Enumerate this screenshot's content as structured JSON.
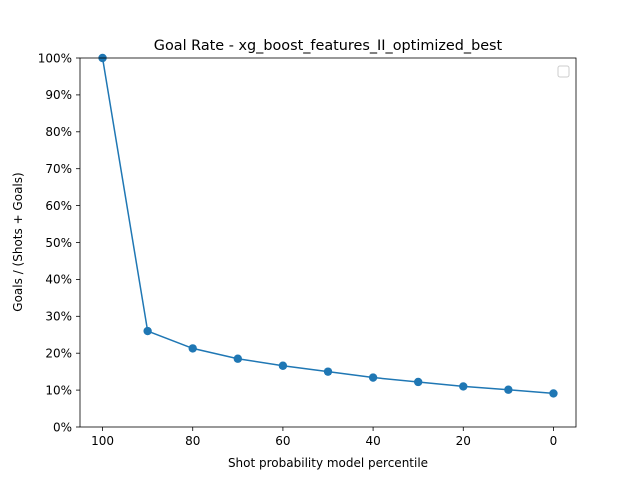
{
  "chart_data": {
    "type": "line",
    "title": "Goal Rate - xg_boost_features_II_optimized_best",
    "xlabel": "Shot probability model percentile",
    "ylabel": "Goals / (Shots + Goals)",
    "x_inverted": true,
    "xlim": [
      105,
      -5
    ],
    "ylim": [
      0,
      100
    ],
    "x_ticks": [
      100,
      80,
      60,
      40,
      20,
      0
    ],
    "y_ticks": [
      0,
      10,
      20,
      30,
      40,
      50,
      60,
      70,
      80,
      90,
      100
    ],
    "y_tick_suffix": "%",
    "grid": false,
    "legend": {
      "placement": "upper right",
      "entries": []
    },
    "series": [
      {
        "color": "#1f77b4",
        "marker": "circle",
        "x": [
          100,
          90,
          80,
          70,
          60,
          50,
          40,
          30,
          20,
          10,
          0
        ],
        "y": [
          100,
          26,
          21.3,
          18.5,
          16.6,
          15,
          13.4,
          12.2,
          11,
          10.1,
          9.1
        ]
      }
    ]
  }
}
